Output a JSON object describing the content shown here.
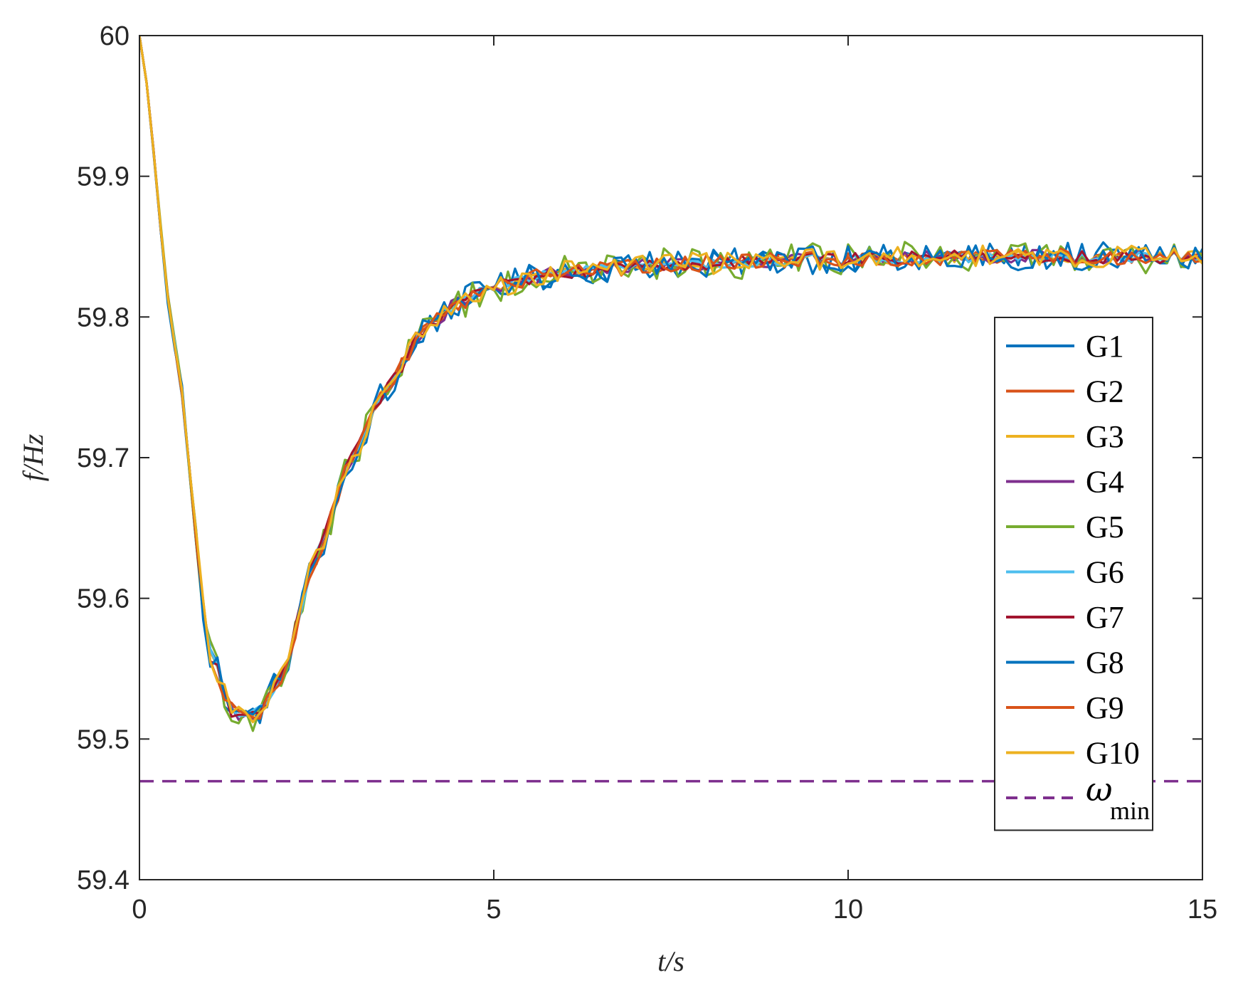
{
  "chart_data": {
    "type": "line",
    "title": "",
    "xlabel": "t/s",
    "ylabel": "f/Hz",
    "xlim": [
      0,
      15
    ],
    "ylim": [
      59.4,
      60
    ],
    "xticks": [
      0,
      5,
      10,
      15
    ],
    "xtick_labels": [
      "0",
      "5",
      "10",
      "15"
    ],
    "yticks": [
      59.4,
      59.5,
      59.6,
      59.7,
      59.8,
      59.9,
      60
    ],
    "ytick_labels": [
      "59.4",
      "59.5",
      "59.6",
      "59.7",
      "59.8",
      "59.9",
      "60"
    ],
    "grid": false,
    "legend_position": "right",
    "x": [
      0,
      0.5,
      1.0,
      1.3,
      1.5,
      1.7,
      2.0,
      2.5,
      3.0,
      3.5,
      4.0,
      4.5,
      5.0,
      6.0,
      7.0,
      8.0,
      9.0,
      10.0,
      11.0,
      12.0,
      13.0,
      14.0,
      15.0
    ],
    "series": [
      {
        "name": "G1",
        "color": "#0072BD",
        "noise": 0.01,
        "values": [
          60.0,
          59.78,
          59.56,
          59.52,
          59.515,
          59.52,
          59.545,
          59.63,
          59.7,
          59.75,
          59.79,
          59.81,
          59.822,
          59.832,
          59.836,
          59.838,
          59.84,
          59.841,
          59.842,
          59.843,
          59.843,
          59.843,
          59.843
        ]
      },
      {
        "name": "G2",
        "color": "#D95319",
        "noise": 0.005,
        "values": [
          60.0,
          59.78,
          59.56,
          59.52,
          59.515,
          59.52,
          59.545,
          59.63,
          59.7,
          59.75,
          59.79,
          59.81,
          59.822,
          59.832,
          59.836,
          59.838,
          59.84,
          59.841,
          59.842,
          59.843,
          59.843,
          59.843,
          59.843
        ]
      },
      {
        "name": "G3",
        "color": "#EDB120",
        "noise": 0.004,
        "values": [
          60.0,
          59.78,
          59.56,
          59.52,
          59.515,
          59.52,
          59.545,
          59.63,
          59.7,
          59.75,
          59.79,
          59.81,
          59.822,
          59.832,
          59.836,
          59.838,
          59.84,
          59.841,
          59.842,
          59.843,
          59.843,
          59.843,
          59.843
        ]
      },
      {
        "name": "G4",
        "color": "#7E2F8E",
        "noise": 0.005,
        "values": [
          60.0,
          59.78,
          59.56,
          59.52,
          59.515,
          59.52,
          59.545,
          59.63,
          59.7,
          59.75,
          59.79,
          59.81,
          59.822,
          59.832,
          59.836,
          59.838,
          59.84,
          59.841,
          59.842,
          59.843,
          59.843,
          59.843,
          59.843
        ]
      },
      {
        "name": "G5",
        "color": "#77AC30",
        "noise": 0.012,
        "values": [
          60.0,
          59.78,
          59.56,
          59.52,
          59.515,
          59.52,
          59.545,
          59.63,
          59.7,
          59.75,
          59.79,
          59.81,
          59.822,
          59.832,
          59.836,
          59.838,
          59.84,
          59.841,
          59.842,
          59.843,
          59.843,
          59.843,
          59.843
        ]
      },
      {
        "name": "G6",
        "color": "#4DBEEE",
        "noise": 0.004,
        "values": [
          60.0,
          59.78,
          59.56,
          59.52,
          59.515,
          59.52,
          59.545,
          59.63,
          59.7,
          59.75,
          59.79,
          59.81,
          59.822,
          59.832,
          59.836,
          59.838,
          59.84,
          59.841,
          59.842,
          59.843,
          59.843,
          59.843,
          59.843
        ]
      },
      {
        "name": "G7",
        "color": "#A2142F",
        "noise": 0.005,
        "values": [
          60.0,
          59.78,
          59.56,
          59.52,
          59.515,
          59.52,
          59.545,
          59.63,
          59.7,
          59.75,
          59.79,
          59.81,
          59.822,
          59.832,
          59.836,
          59.838,
          59.84,
          59.841,
          59.842,
          59.843,
          59.843,
          59.843,
          59.843
        ]
      },
      {
        "name": "G8",
        "color": "#0072BD",
        "noise": 0.01,
        "values": [
          60.0,
          59.78,
          59.56,
          59.52,
          59.515,
          59.52,
          59.545,
          59.63,
          59.7,
          59.75,
          59.79,
          59.81,
          59.822,
          59.832,
          59.836,
          59.838,
          59.84,
          59.841,
          59.842,
          59.843,
          59.843,
          59.843,
          59.843
        ]
      },
      {
        "name": "G9",
        "color": "#D95319",
        "noise": 0.006,
        "values": [
          60.0,
          59.78,
          59.56,
          59.52,
          59.515,
          59.52,
          59.545,
          59.63,
          59.7,
          59.75,
          59.79,
          59.81,
          59.822,
          59.832,
          59.836,
          59.838,
          59.84,
          59.841,
          59.842,
          59.843,
          59.843,
          59.843,
          59.843
        ]
      },
      {
        "name": "G10",
        "color": "#EDB120",
        "noise": 0.008,
        "values": [
          60.0,
          59.78,
          59.56,
          59.52,
          59.515,
          59.52,
          59.545,
          59.63,
          59.7,
          59.75,
          59.79,
          59.81,
          59.822,
          59.832,
          59.836,
          59.838,
          59.84,
          59.841,
          59.842,
          59.843,
          59.843,
          59.843,
          59.843
        ]
      }
    ],
    "reference_line": {
      "name": "ω",
      "subscript": "min",
      "value": 59.47,
      "color": "#7E2F8E",
      "style": "dashed"
    }
  }
}
